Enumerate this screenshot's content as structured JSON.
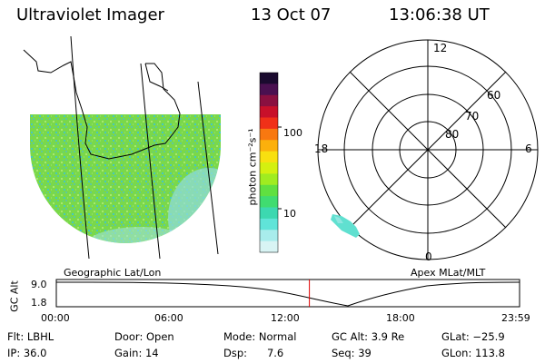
{
  "header": {
    "title": "Ultraviolet Imager",
    "date": "13 Oct 07",
    "time": "13:06:38 UT"
  },
  "colorbar": {
    "label": "photon cm⁻²s⁻¹",
    "ticks": [
      "100",
      "10"
    ],
    "colors": [
      "#1a0a2e",
      "#4a1050",
      "#8a1040",
      "#c8102a",
      "#f03018",
      "#f87810",
      "#fcb00c",
      "#f8e010",
      "#d4f010",
      "#a0ec20",
      "#60e040",
      "#40dc70",
      "#3cd8b0",
      "#60e4d8",
      "#a8ecec",
      "#d8f4f4"
    ]
  },
  "geo_panel": {
    "label": "Geographic Lat/Lon",
    "fill_colors": [
      "#7ad84a",
      "#5cc8a0",
      "#8fe060",
      "#44c8c0",
      "#a6e870"
    ]
  },
  "polar_panel": {
    "label": "Apex MLat/MLT",
    "mlt_labels": {
      "top": "12",
      "left": "18",
      "right": "6",
      "bottom": "0"
    },
    "lat_labels": [
      "60",
      "70",
      "80"
    ]
  },
  "altitude_plot": {
    "ylabel": "GC Alt",
    "yticks": [
      "9.0",
      "1.8"
    ],
    "xticks": [
      "00:00",
      "06:00",
      "12:00",
      "18:00",
      "23:59"
    ],
    "marker_time": "13:06:38",
    "marker_color": "#e00000"
  },
  "info": {
    "flt": "Flt: LBHL",
    "ip": "IP: 36.0",
    "door": "Door: Open",
    "gain": "Gain: 14",
    "mode": "Mode: Normal",
    "dsp": "Dsp:      7.6",
    "gcalt": "GC Alt: 3.9 Re",
    "seq": "Seq: 39",
    "glat": "GLat: −25.9",
    "glon": "GLon: 113.8"
  }
}
